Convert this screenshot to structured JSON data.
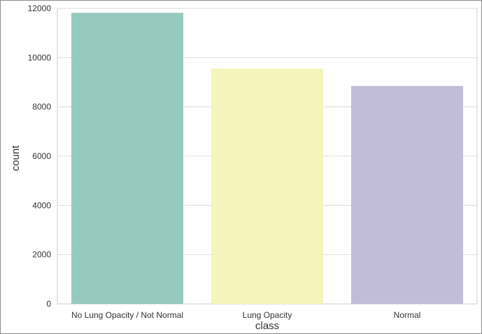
{
  "chart_data": {
    "type": "bar",
    "title": "",
    "xlabel": "class",
    "ylabel": "count",
    "categories": [
      "No Lung Opacity / Not Normal",
      "Lung Opacity",
      "Normal"
    ],
    "values": [
      11821,
      9555,
      8851
    ],
    "colors": [
      "#96c9bf",
      "#f5f5bb",
      "#c1bdd8"
    ],
    "ylim": [
      0,
      12000
    ],
    "yticks": [
      0,
      2000,
      4000,
      6000,
      8000,
      10000,
      12000
    ],
    "ytick_labels": [
      "0",
      "2000",
      "4000",
      "6000",
      "8000",
      "10000",
      "12000"
    ],
    "grid": true,
    "legend": "none"
  }
}
